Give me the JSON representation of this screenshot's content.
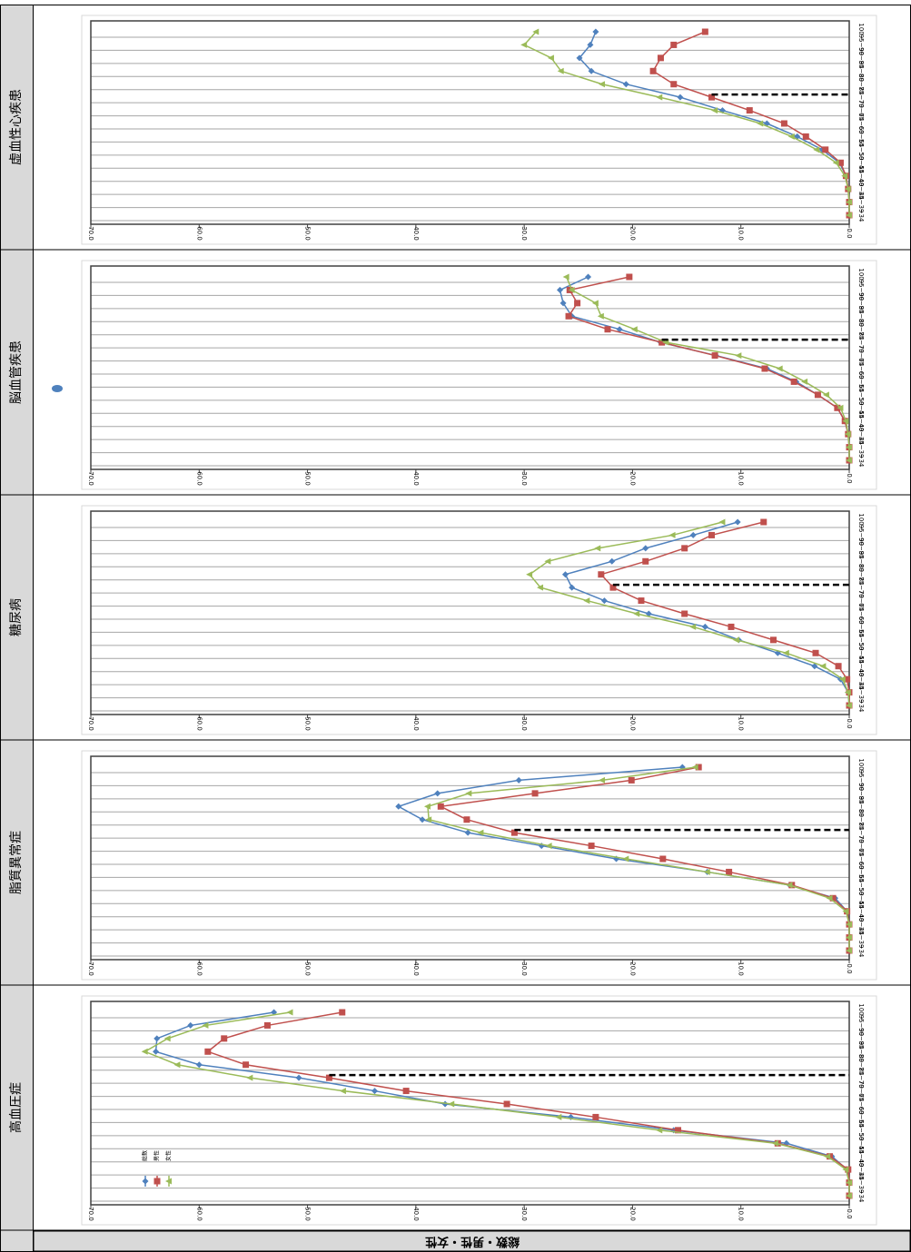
{
  "chart_data": [
    {
      "type": "line",
      "title": "虚血性心疾患",
      "categories": [
        "~34",
        "35~39",
        "40~44",
        "45~49",
        "50~54",
        "55~59",
        "60~64",
        "65~69",
        "70~74",
        "75~79",
        "80~84",
        "85~89",
        "90~94",
        "95~99",
        "100~"
      ],
      "xlim": [
        70,
        0
      ],
      "xticks": [
        {
          "value": 70,
          "label": "70.0"
        },
        {
          "value": 60,
          "label": "60.0"
        },
        {
          "value": 50,
          "label": "50.0"
        },
        {
          "value": 40,
          "label": "40.0"
        },
        {
          "value": 30,
          "label": "30.0"
        },
        {
          "value": 20,
          "label": "20.0"
        },
        {
          "value": 10,
          "label": "10.0"
        },
        {
          "value": 0,
          "label": "0.0"
        }
      ],
      "grid": true,
      "series": [
        {
          "name": "総数",
          "color": "#4f81bd",
          "values": [
            0,
            0,
            0.1,
            0.3,
            0.9,
            2.5,
            4.8,
            7.6,
            11.7,
            15.6,
            20.6,
            23.8,
            24.9,
            23.9,
            23.4
          ]
        },
        {
          "name": "男性",
          "color": "#c0504d",
          "values": [
            0,
            0,
            0.1,
            0.3,
            0.8,
            2.2,
            4,
            6,
            9.2,
            12.7,
            16.2,
            18.1,
            17.4,
            16.2,
            13.3
          ]
        },
        {
          "name": "女性",
          "color": "#9bbb59",
          "values": [
            0,
            0,
            0.1,
            0.4,
            1.2,
            3,
            5.3,
            8.2,
            12.4,
            17.5,
            22.8,
            26.6,
            27.5,
            30,
            28.9
          ]
        }
      ]
    },
    {
      "type": "line",
      "title": "脳血管疾患",
      "categories": [
        "~34",
        "35~39",
        "40~44",
        "45~49",
        "50~54",
        "55~59",
        "60~64",
        "65~69",
        "70~74",
        "75~79",
        "80~84",
        "85~89",
        "90~94",
        "95~99",
        "100~"
      ],
      "xlim": [
        70,
        0
      ],
      "xticks": [
        {
          "value": 70,
          "label": "70.0"
        },
        {
          "value": 60,
          "label": "60.0"
        },
        {
          "value": 50,
          "label": "50.0"
        },
        {
          "value": 40,
          "label": "40.0"
        },
        {
          "value": 30,
          "label": "30.0"
        },
        {
          "value": 20,
          "label": "20.0"
        },
        {
          "value": 10,
          "label": "10.0"
        },
        {
          "value": 0,
          "label": "0.0"
        }
      ],
      "grid": true,
      "series": [
        {
          "name": "総数",
          "color": "#4f81bd",
          "values": [
            0,
            0,
            0.1,
            0.4,
            1.1,
            2.9,
            4.9,
            7.6,
            12.3,
            17.4,
            21.2,
            25.6,
            26.4,
            26.7,
            24.1
          ]
        },
        {
          "name": "男性",
          "color": "#c0504d",
          "values": [
            0,
            0,
            0.1,
            0.4,
            1.1,
            2.9,
            5.1,
            7.8,
            12.4,
            17.3,
            22.3,
            25.9,
            25.1,
            25.8,
            20.3
          ]
        },
        {
          "name": "女性",
          "color": "#9bbb59",
          "values": [
            0,
            0,
            0.1,
            0.3,
            0.8,
            2.1,
            4.1,
            6.4,
            10.2,
            16.9,
            19.8,
            22.9,
            23.4,
            25.6,
            26.1
          ]
        }
      ]
    },
    {
      "type": "line",
      "title": "糖尿病",
      "categories": [
        "~34",
        "35~39",
        "40~44",
        "45~49",
        "50~54",
        "55~59",
        "60~64",
        "65~69",
        "70~74",
        "75~79",
        "80~84",
        "85~89",
        "90~94",
        "95~99",
        "100~"
      ],
      "xlim": [
        70,
        0
      ],
      "xticks": [
        {
          "value": 70,
          "label": "70.0"
        },
        {
          "value": 60,
          "label": "60.0"
        },
        {
          "value": 50,
          "label": "50.0"
        },
        {
          "value": 40,
          "label": "40.0"
        },
        {
          "value": 30,
          "label": "30.0"
        },
        {
          "value": 20,
          "label": "20.0"
        },
        {
          "value": 10,
          "label": "10.0"
        },
        {
          "value": 0,
          "label": "0.0"
        }
      ],
      "grid": true,
      "series": [
        {
          "name": "総数",
          "color": "#4f81bd",
          "values": [
            0,
            0.1,
            0.8,
            3.2,
            6.6,
            10.2,
            13.3,
            18.5,
            22.6,
            25.6,
            26.2,
            21.9,
            18.8,
            14.4,
            10.3
          ]
        },
        {
          "name": "男性",
          "color": "#c0504d",
          "values": [
            0,
            0,
            0.2,
            1,
            3.1,
            7,
            10.9,
            15.2,
            19.2,
            21.8,
            22.9,
            18.8,
            15.2,
            12.7,
            7.9
          ]
        },
        {
          "name": "女性",
          "color": "#9bbb59",
          "values": [
            0,
            0.1,
            0.6,
            2.4,
            5.8,
            10.4,
            14.4,
            19.6,
            24.2,
            28.5,
            29.5,
            27.8,
            23.2,
            16.3,
            11.7
          ]
        }
      ]
    },
    {
      "type": "line",
      "title": "脂質異常症",
      "categories": [
        "~34",
        "35~39",
        "40~44",
        "45~49",
        "50~54",
        "55~59",
        "60~64",
        "65~69",
        "70~74",
        "75~79",
        "80~84",
        "85~89",
        "90~94",
        "95~99",
        "100~"
      ],
      "xlim": [
        70,
        0
      ],
      "xticks": [
        {
          "value": 70,
          "label": "70.0"
        },
        {
          "value": 60,
          "label": "60.0"
        },
        {
          "value": 50,
          "label": "50.0"
        },
        {
          "value": 40,
          "label": "40.0"
        },
        {
          "value": 30,
          "label": "30.0"
        },
        {
          "value": 20,
          "label": "20.0"
        },
        {
          "value": 10,
          "label": "10.0"
        },
        {
          "value": 0,
          "label": "0.0"
        }
      ],
      "grid": true,
      "series": [
        {
          "name": "総数",
          "color": "#4f81bd",
          "values": [
            0,
            0,
            0,
            0.2,
            1.3,
            5.5,
            13.1,
            21.5,
            28.4,
            35.2,
            39.4,
            41.6,
            38,
            30.5,
            15.4
          ]
        },
        {
          "name": "男性",
          "color": "#c0504d",
          "values": [
            0,
            0,
            0,
            0.2,
            1.5,
            5.3,
            11.1,
            17.2,
            23.8,
            30.9,
            35.3,
            37.7,
            29,
            20.1,
            13.9
          ]
        },
        {
          "name": "女性",
          "color": "#9bbb59",
          "values": [
            0,
            0,
            0,
            0.3,
            1.8,
            5.5,
            13.1,
            20.6,
            27.7,
            34,
            38.8,
            38.9,
            35.1,
            22.8,
            14.2
          ]
        }
      ]
    },
    {
      "type": "line",
      "title": "高血圧症",
      "categories": [
        "~34",
        "35~39",
        "40~44",
        "45~49",
        "50~54",
        "55~59",
        "60~64",
        "65~69",
        "70~74",
        "75~79",
        "80~84",
        "85~89",
        "90~94",
        "95~99",
        "100~"
      ],
      "xlim": [
        70,
        0
      ],
      "xticks": [
        {
          "value": 70,
          "label": "70.0"
        },
        {
          "value": 60,
          "label": "60.0"
        },
        {
          "value": 50,
          "label": "50.0"
        },
        {
          "value": 40,
          "label": "40.0"
        },
        {
          "value": 30,
          "label": "30.0"
        },
        {
          "value": 20,
          "label": "20.0"
        },
        {
          "value": 10,
          "label": "10.0"
        },
        {
          "value": 0,
          "label": "0.0"
        }
      ],
      "grid": true,
      "legend": "bottom-left",
      "series": [
        {
          "name": "総数",
          "color": "#4f81bd",
          "values": [
            0,
            0,
            0.2,
            1.6,
            5.8,
            16.2,
            25.7,
            37.3,
            43.8,
            50.8,
            60,
            64,
            63.9,
            60.8,
            53.1
          ]
        },
        {
          "name": "男性",
          "color": "#c0504d",
          "values": [
            0,
            0,
            0.1,
            1.8,
            6.6,
            15.8,
            23.4,
            31.6,
            40.9,
            48,
            55.7,
            59.2,
            57.7,
            53.7,
            46.8
          ]
        },
        {
          "name": "女性",
          "color": "#9bbb59",
          "values": [
            0,
            0,
            0.3,
            2,
            6.8,
            17.5,
            26.8,
            36.7,
            46.7,
            55.3,
            62,
            65,
            62.9,
            59.4,
            51.6
          ]
        }
      ]
    }
  ],
  "footer": "総数・男性・女性"
}
